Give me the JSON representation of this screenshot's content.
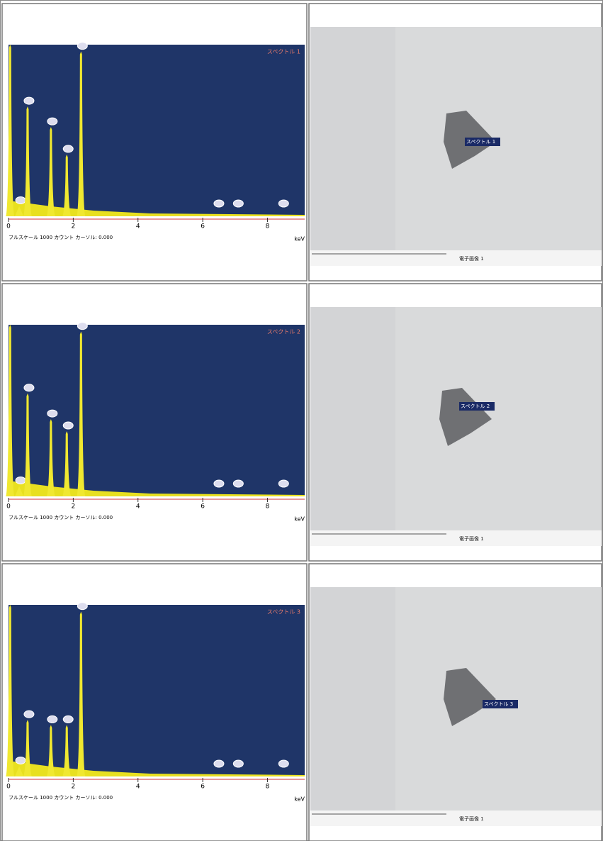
{
  "rows": [
    {
      "spectrum": {
        "title": "スペクトル 1",
        "footer": "フルスケール 1000 カウント カーソル: 0.000",
        "unit": "keV",
        "xlim": [
          0,
          9.15
        ],
        "ylim": [
          0,
          1000
        ],
        "xticks": [
          0,
          2,
          4,
          6,
          8
        ],
        "peaks": [
          {
            "x": 0.05,
            "y": 1000
          },
          {
            "x": 0.33,
            "y": 60
          },
          {
            "x": 0.59,
            "y": 640
          },
          {
            "x": 1.31,
            "y": 520
          },
          {
            "x": 1.8,
            "y": 360
          },
          {
            "x": 2.24,
            "y": 960
          }
        ]
      },
      "image": {
        "marker": "スペクトル 1",
        "caption": "電子画像 1"
      }
    },
    {
      "spectrum": {
        "title": "スペクトル 2",
        "footer": "フルスケール 1000 カウント カーソル: 0.000",
        "unit": "keV",
        "xlim": [
          0,
          9.15
        ],
        "ylim": [
          0,
          1000
        ],
        "xticks": [
          0,
          2,
          4,
          6,
          8
        ],
        "peaks": [
          {
            "x": 0.05,
            "y": 1000
          },
          {
            "x": 0.33,
            "y": 60
          },
          {
            "x": 0.59,
            "y": 600
          },
          {
            "x": 1.31,
            "y": 450
          },
          {
            "x": 1.8,
            "y": 380
          },
          {
            "x": 2.24,
            "y": 960
          }
        ]
      },
      "image": {
        "marker": "スペクトル 2",
        "caption": "電子画像 1"
      }
    },
    {
      "spectrum": {
        "title": "スペクトル 3",
        "footer": "フルスケール 1000 カウント カーソル: 0.000",
        "unit": "keV",
        "xlim": [
          0,
          9.15
        ],
        "ylim": [
          0,
          1000
        ],
        "xticks": [
          0,
          2,
          4,
          6,
          8
        ],
        "peaks": [
          {
            "x": 0.05,
            "y": 1000
          },
          {
            "x": 0.33,
            "y": 60
          },
          {
            "x": 0.59,
            "y": 330
          },
          {
            "x": 1.31,
            "y": 300
          },
          {
            "x": 1.8,
            "y": 300
          },
          {
            "x": 2.24,
            "y": 960
          }
        ]
      },
      "image": {
        "marker": "スペクトル 3",
        "caption": "電子画像 1"
      }
    }
  ]
}
